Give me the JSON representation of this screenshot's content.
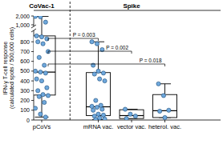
{
  "chart_data": {
    "type": "box",
    "categories": [
      "pCoVs",
      "mRNA vac.",
      "vector vac.",
      "heterol. vac."
    ],
    "groups": [
      {
        "label": "CoVac-1",
        "categories": [
          0
        ]
      },
      {
        "label": "Spike",
        "categories": [
          1,
          2,
          3
        ]
      }
    ],
    "ylabel": [
      "IFN-γ T-cell response",
      "(calculated spots / 500,000 cells)"
    ],
    "ylim": [
      0,
      2000
    ],
    "yticks": [
      0,
      100,
      200,
      300,
      400,
      500,
      600,
      700,
      800,
      {
        "value": 1000,
        "label": "1,000"
      },
      {
        "value": 2000,
        "label": "2,000"
      }
    ],
    "color": "#6fa8dc",
    "marker": "circle",
    "boxes": [
      {
        "min": 30,
        "q1": 255,
        "median": 490,
        "q3": 860,
        "max": 1950
      },
      {
        "min": 5,
        "q1": 45,
        "median": 135,
        "q3": 485,
        "max": 800
      },
      {
        "min": 15,
        "q1": 15,
        "median": 45,
        "q3": 105,
        "max": 110
      },
      {
        "min": 25,
        "q1": 25,
        "median": 95,
        "q3": 260,
        "max": 370
      }
    ],
    "points": [
      [
        1950,
        1900,
        1300,
        860,
        850,
        830,
        800,
        780,
        700,
        640,
        560,
        500,
        490,
        480,
        420,
        400,
        330,
        300,
        260,
        250,
        240,
        180,
        120,
        60,
        30
      ],
      [
        800,
        780,
        720,
        560,
        500,
        480,
        470,
        420,
        400,
        200,
        150,
        140,
        130,
        110,
        100,
        60,
        50,
        40,
        20,
        10,
        5
      ],
      [
        110,
        60,
        40,
        15
      ],
      [
        370,
        250,
        100,
        90,
        25
      ]
    ],
    "annotations": [
      {
        "text": "P = 0.003",
        "from": 0,
        "to": 1
      },
      {
        "text": "P = 0.002",
        "from": 0,
        "to": 2
      },
      {
        "text": "P = 0.018",
        "from": 0,
        "to": 3
      }
    ]
  }
}
